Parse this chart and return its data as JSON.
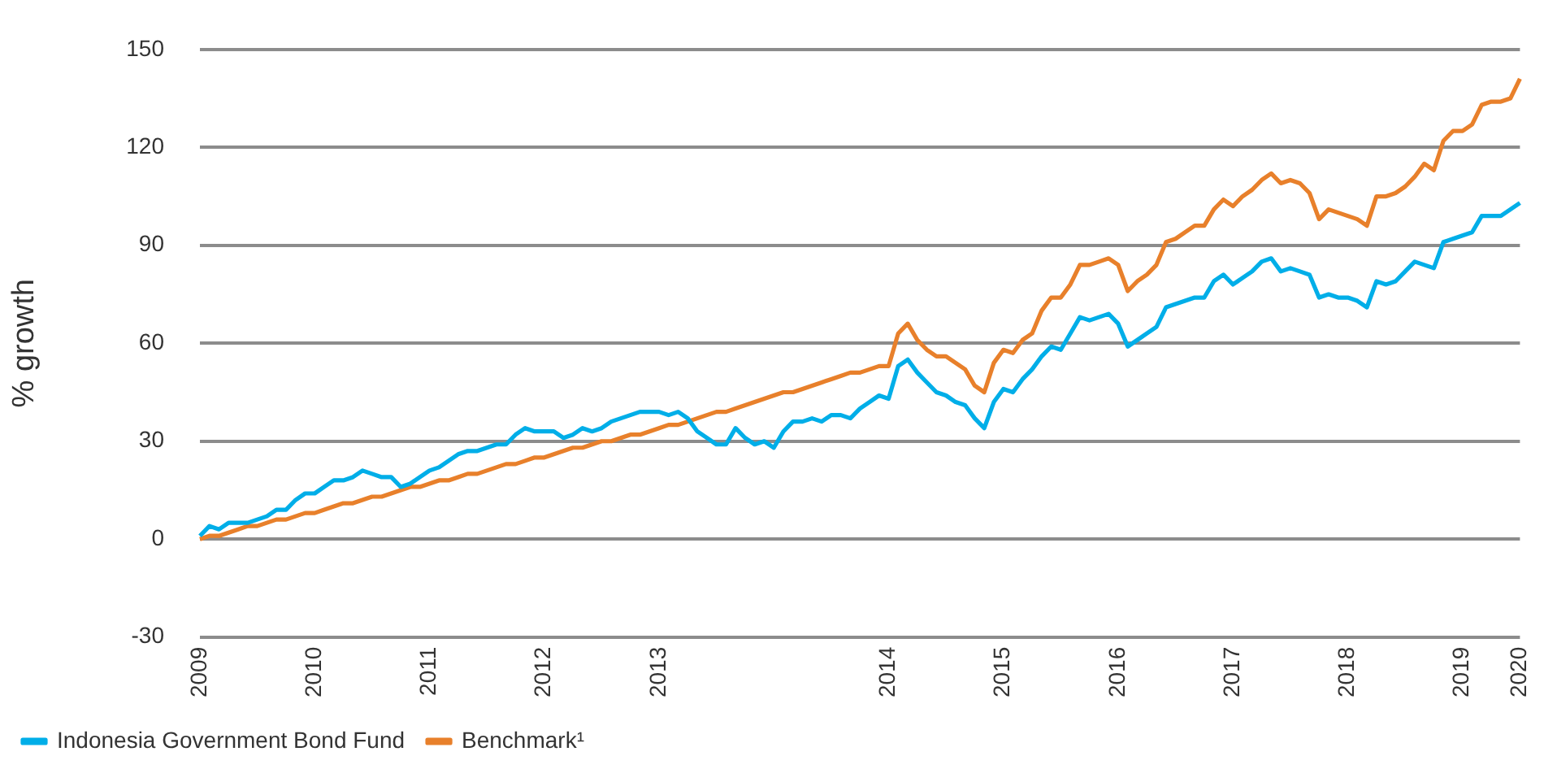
{
  "chart_data": {
    "type": "line",
    "ylabel": "% growth",
    "ylim": [
      -30,
      150
    ],
    "yticks": [
      -30,
      0,
      30,
      60,
      90,
      120,
      150
    ],
    "categories": [
      "2009",
      null,
      null,
      null,
      null,
      null,
      null,
      null,
      null,
      null,
      null,
      null,
      "2010",
      null,
      null,
      null,
      null,
      null,
      null,
      null,
      null,
      null,
      null,
      null,
      "2011",
      null,
      null,
      null,
      null,
      null,
      null,
      null,
      null,
      null,
      null,
      null,
      "2012",
      null,
      null,
      null,
      null,
      null,
      null,
      null,
      null,
      null,
      null,
      null,
      "2013",
      null,
      null,
      null,
      null,
      null,
      null,
      null,
      null,
      null,
      null,
      null,
      null,
      null,
      null,
      null,
      null,
      null,
      null,
      null,
      null,
      null,
      null,
      null,
      "2014",
      null,
      null,
      null,
      null,
      null,
      null,
      null,
      null,
      null,
      null,
      null,
      "2015",
      null,
      null,
      null,
      null,
      null,
      null,
      null,
      null,
      null,
      null,
      null,
      "2016",
      null,
      null,
      null,
      null,
      null,
      null,
      null,
      null,
      null,
      null,
      null,
      "2017",
      null,
      null,
      null,
      null,
      null,
      null,
      null,
      null,
      null,
      null,
      null,
      "2018",
      null,
      null,
      null,
      null,
      null,
      null,
      null,
      null,
      null,
      null,
      null,
      "2019",
      null,
      null,
      null,
      null,
      null,
      "2020"
    ],
    "grid": "y",
    "legend": "bottom left",
    "marker": "none",
    "line_style": "solid",
    "series": [
      {
        "name": "Indonesia Government Bond Fund",
        "color": "#00aee8",
        "values": [
          1,
          4,
          3,
          5,
          5,
          5,
          6,
          7,
          9,
          9,
          12,
          14,
          14,
          16,
          18,
          18,
          19,
          21,
          20,
          19,
          19,
          16,
          17,
          19,
          21,
          22,
          24,
          26,
          27,
          27,
          28,
          29,
          29,
          32,
          34,
          33,
          33,
          33,
          31,
          32,
          34,
          33,
          34,
          36,
          37,
          38,
          39,
          39,
          39,
          38,
          39,
          37,
          33,
          31,
          29,
          29,
          34,
          31,
          29,
          30,
          28,
          33,
          36,
          36,
          37,
          36,
          38,
          38,
          37,
          40,
          42,
          44,
          43,
          53,
          55,
          51,
          48,
          45,
          44,
          42,
          41,
          37,
          34,
          42,
          46,
          45,
          49,
          52,
          56,
          59,
          58,
          63,
          68,
          67,
          68,
          69,
          66,
          59,
          61,
          63,
          65,
          71,
          72,
          73,
          74,
          74,
          79,
          81,
          78,
          80,
          82,
          85,
          86,
          82,
          83,
          82,
          81,
          74,
          75,
          74,
          74,
          73,
          71,
          79,
          78,
          79,
          82,
          85,
          84,
          83,
          91,
          92,
          93,
          94,
          99,
          99,
          99,
          101,
          103
        ]
      },
      {
        "name": "Benchmark¹",
        "color": "#e8802b",
        "values": [
          0,
          1,
          1,
          2,
          3,
          4,
          4,
          5,
          6,
          6,
          7,
          8,
          8,
          9,
          10,
          11,
          11,
          12,
          13,
          13,
          14,
          15,
          16,
          16,
          17,
          18,
          18,
          19,
          20,
          20,
          21,
          22,
          23,
          23,
          24,
          25,
          25,
          26,
          27,
          28,
          28,
          29,
          30,
          30,
          31,
          32,
          32,
          33,
          34,
          35,
          35,
          36,
          37,
          38,
          39,
          39,
          40,
          41,
          42,
          43,
          44,
          45,
          45,
          46,
          47,
          48,
          49,
          50,
          51,
          51,
          52,
          53,
          53,
          63,
          66,
          61,
          58,
          56,
          56,
          54,
          52,
          47,
          45,
          54,
          58,
          57,
          61,
          63,
          70,
          74,
          74,
          78,
          84,
          84,
          85,
          86,
          84,
          76,
          79,
          81,
          84,
          91,
          92,
          94,
          96,
          96,
          101,
          104,
          102,
          105,
          107,
          110,
          112,
          109,
          110,
          109,
          106,
          98,
          101,
          100,
          99,
          98,
          96,
          105,
          105,
          106,
          108,
          111,
          115,
          113,
          122,
          125,
          125,
          127,
          133,
          134,
          134,
          135,
          141
        ]
      }
    ]
  }
}
